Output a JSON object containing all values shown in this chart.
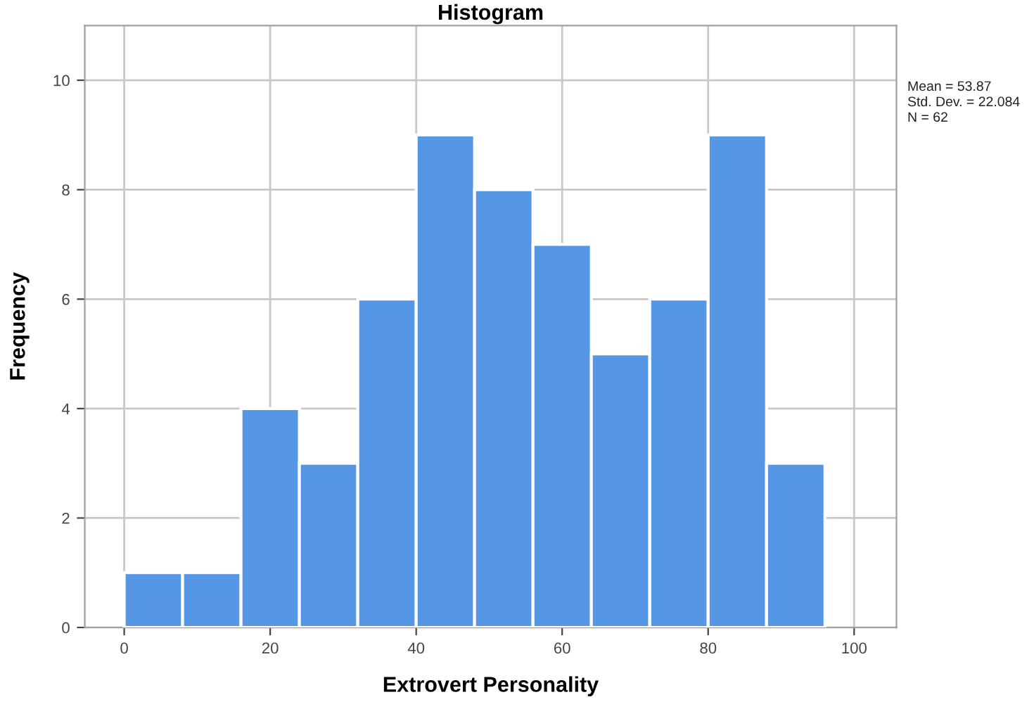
{
  "chart_data": {
    "type": "histogram",
    "title": "Histogram",
    "xlabel": "Extrovert Personality",
    "ylabel": "Frequency",
    "bins": [
      0,
      8,
      16,
      24,
      32,
      40,
      48,
      56,
      64,
      72,
      80,
      88,
      96
    ],
    "values": [
      1,
      1,
      4,
      3,
      6,
      9,
      8,
      7,
      5,
      6,
      9,
      3
    ],
    "color": "#5596e5",
    "xlim": [
      -5.4,
      105.8
    ],
    "ylim": [
      0,
      11
    ],
    "xticks": [
      0,
      20,
      40,
      60,
      80,
      100
    ],
    "yticks": [
      0,
      2,
      4,
      6,
      8,
      10
    ],
    "grid": true,
    "annotations": [
      "Mean = 53.87",
      "Std. Dev. = 22.084",
      "N = 62"
    ]
  }
}
